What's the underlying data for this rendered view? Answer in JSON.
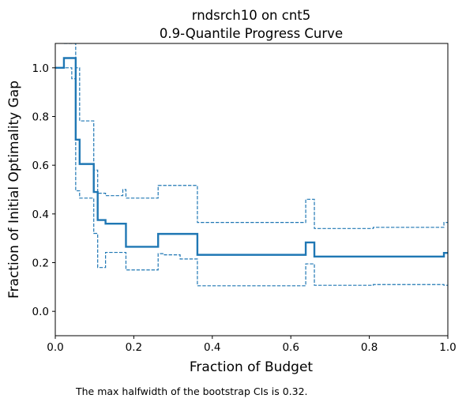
{
  "chart_data": {
    "type": "line",
    "title": "rndsrch10 on cnt5",
    "subtitle": "0.9-Quantile Progress Curve",
    "xlabel": "Fraction of Budget",
    "ylabel": "Fraction of Initial Optimality Gap",
    "xlim": [
      0,
      1
    ],
    "ylim": [
      -0.1,
      1.1
    ],
    "xticks": [
      0,
      0.2,
      0.4,
      0.6,
      0.8,
      1.0
    ],
    "xtick_labels": [
      "0.0",
      "0.2",
      "0.4",
      "0.6",
      "0.8",
      "1.0"
    ],
    "yticks": [
      0,
      0.2,
      0.4,
      0.6,
      0.8,
      1.0
    ],
    "ytick_labels": [
      "0.0",
      "0.2",
      "0.4",
      "0.6",
      "0.8",
      "1.0"
    ],
    "grid": false,
    "line_color": "#1f77b4",
    "series": [
      {
        "style": "solid",
        "x": [
          0,
          0.022,
          0.022,
          0.052,
          0.052,
          0.062,
          0.062,
          0.098,
          0.098,
          0.108,
          0.108,
          0.128,
          0.128,
          0.18,
          0.18,
          0.262,
          0.262,
          0.362,
          0.362,
          0.638,
          0.638,
          0.66,
          0.66,
          0.99,
          0.99,
          1.0
        ],
        "y": [
          1.0,
          1.0,
          1.04,
          1.04,
          0.705,
          0.705,
          0.605,
          0.605,
          0.49,
          0.49,
          0.375,
          0.375,
          0.36,
          0.36,
          0.265,
          0.265,
          0.318,
          0.318,
          0.232,
          0.232,
          0.283,
          0.283,
          0.225,
          0.225,
          0.24,
          0.24
        ]
      },
      {
        "style": "dashed",
        "x": [
          0.022,
          0.022,
          0.052,
          0.052,
          0.062,
          0.062,
          0.098,
          0.098,
          0.108,
          0.108,
          0.128,
          0.128,
          0.172,
          0.172,
          0.18,
          0.18,
          0.262,
          0.262,
          0.362,
          0.362,
          0.638,
          0.638,
          0.66,
          0.66,
          0.81,
          0.81,
          0.99,
          0.99,
          1.0
        ],
        "y": [
          1.1,
          1.1,
          1.1,
          1.0,
          1.0,
          0.782,
          0.782,
          0.58,
          0.58,
          0.485,
          0.485,
          0.475,
          0.475,
          0.5,
          0.5,
          0.465,
          0.465,
          0.517,
          0.517,
          0.365,
          0.365,
          0.46,
          0.46,
          0.34,
          0.34,
          0.345,
          0.345,
          0.365,
          0.365
        ]
      },
      {
        "style": "dashed",
        "x": [
          0.0,
          0.042,
          0.042,
          0.052,
          0.052,
          0.062,
          0.062,
          0.098,
          0.098,
          0.108,
          0.108,
          0.128,
          0.128,
          0.18,
          0.18,
          0.262,
          0.262,
          0.278,
          0.278,
          0.318,
          0.318,
          0.362,
          0.362,
          0.638,
          0.638,
          0.66,
          0.66,
          0.81,
          0.81,
          0.99,
          0.99,
          1.0
        ],
        "y": [
          1.0,
          1.0,
          0.955,
          0.955,
          0.495,
          0.495,
          0.465,
          0.465,
          0.32,
          0.32,
          0.18,
          0.18,
          0.242,
          0.242,
          0.17,
          0.17,
          0.237,
          0.237,
          0.232,
          0.232,
          0.215,
          0.215,
          0.105,
          0.105,
          0.195,
          0.195,
          0.107,
          0.107,
          0.11,
          0.11,
          0.107,
          0.107
        ]
      }
    ]
  },
  "footnote": "The max halfwidth of the bootstrap CIs is 0.32."
}
